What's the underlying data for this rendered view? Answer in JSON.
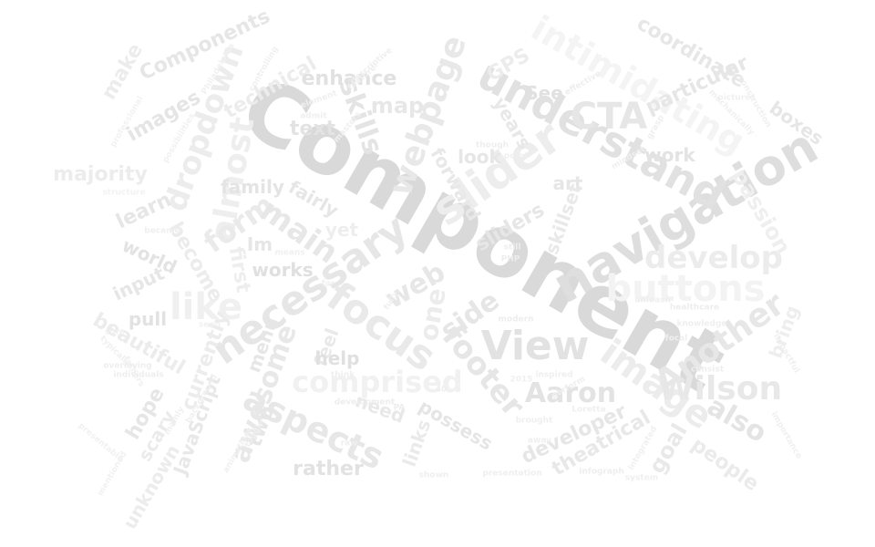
{
  "words": [
    {
      "text": "Component",
      "color": "#d9d9d9"
    },
    {
      "text": "navigation",
      "color": "#dedede"
    },
    {
      "text": "understand",
      "color": "#e1e1e1"
    },
    {
      "text": "necessary",
      "color": "#e6e6e6"
    },
    {
      "text": "slider",
      "color": "#ededed"
    },
    {
      "text": "buttons",
      "color": "#f3f3f3"
    },
    {
      "text": "View",
      "color": "#e2e2e2"
    },
    {
      "text": "image",
      "color": "#ececec"
    },
    {
      "text": "intimidating",
      "color": "#f4f4f4"
    },
    {
      "text": "focus",
      "color": "#e9e9e9"
    },
    {
      "text": "Wilson",
      "color": "#e8e8e8"
    },
    {
      "text": "Aaron",
      "color": "#e3e3e3"
    },
    {
      "text": "footer",
      "color": "#e6e6e6"
    },
    {
      "text": "webpage",
      "color": "#e8e8e8"
    },
    {
      "text": "comprised",
      "color": "#f1f1f1"
    },
    {
      "text": "aspects",
      "color": "#e7e7e7"
    },
    {
      "text": "almost",
      "color": "#eeeeee"
    },
    {
      "text": "dropdown",
      "color": "#ececec"
    },
    {
      "text": "Another",
      "color": "#e7e7e7"
    },
    {
      "text": "develop",
      "color": "#ececec"
    },
    {
      "text": "CTA",
      "color": "#e6e6e6"
    },
    {
      "text": "like",
      "color": "#f0f0f0"
    },
    {
      "text": "form",
      "color": "#eaeaea"
    },
    {
      "text": "main",
      "color": "#e7e7e7"
    },
    {
      "text": "awesome",
      "color": "#e8e8e8"
    },
    {
      "text": "skills",
      "color": "#e4e4e4"
    },
    {
      "text": "web",
      "color": "#e7e7e7"
    },
    {
      "text": "one",
      "color": "#ececec"
    },
    {
      "text": "side",
      "color": "#e6e6e6"
    },
    {
      "text": "also",
      "color": "#e4e4e4"
    },
    {
      "text": "people",
      "color": "#ebebeb"
    },
    {
      "text": "goal",
      "color": "#e9e9e9"
    },
    {
      "text": "developer",
      "color": "#e6e6e6"
    },
    {
      "text": "theatrical",
      "color": "#e8e8e8"
    },
    {
      "text": "coordinate",
      "color": "#e7e7e7"
    },
    {
      "text": "particular",
      "color": "#e6e6e6"
    },
    {
      "text": "boxes",
      "color": "#e6e6e6"
    },
    {
      "text": "passion",
      "color": "#efefef"
    },
    {
      "text": "Components",
      "color": "#e6e6e6"
    },
    {
      "text": "make",
      "color": "#ececec"
    },
    {
      "text": "images",
      "color": "#e5e5e5"
    },
    {
      "text": "technical",
      "color": "#ececec"
    },
    {
      "text": "enhance",
      "color": "#e1e1e1"
    },
    {
      "text": "text",
      "color": "#e3e3e3"
    },
    {
      "text": "map",
      "color": "#e7e7e7"
    },
    {
      "text": "GPS",
      "color": "#ececec"
    },
    {
      "text": "See",
      "color": "#e1e1e1"
    },
    {
      "text": "years",
      "color": "#e8e8e8"
    },
    {
      "text": "work",
      "color": "#e3e3e3"
    },
    {
      "text": "art",
      "color": "#e6e6e6"
    },
    {
      "text": "look",
      "color": "#e6e6e6"
    },
    {
      "text": "forward",
      "color": "#e8e8e8"
    },
    {
      "text": "majority",
      "color": "#ececec"
    },
    {
      "text": "learn",
      "color": "#e6e6e6"
    },
    {
      "text": "family",
      "color": "#e4e4e4"
    },
    {
      "text": "fairly",
      "color": "#e6e6e6"
    },
    {
      "text": "become",
      "color": "#ececec"
    },
    {
      "text": "first",
      "color": "#eeeeee"
    },
    {
      "text": "Im",
      "color": "#e6e6e6"
    },
    {
      "text": "yet",
      "color": "#eeeeee"
    },
    {
      "text": "sliders",
      "color": "#e6e6e6"
    },
    {
      "text": "skillset",
      "color": "#e9e9e9"
    },
    {
      "text": "world",
      "color": "#e3e3e3"
    },
    {
      "text": "input",
      "color": "#e6e6e6"
    },
    {
      "text": "pull",
      "color": "#e2e2e2"
    },
    {
      "text": "works",
      "color": "#e0e0e0"
    },
    {
      "text": "currently",
      "color": "#ececec"
    },
    {
      "text": "beautiful",
      "color": "#ececec"
    },
    {
      "text": "menu",
      "color": "#e6e6e6"
    },
    {
      "text": "feel",
      "color": "#e9e9e9"
    },
    {
      "text": "help",
      "color": "#e0e0e0"
    },
    {
      "text": "need",
      "color": "#e8e8e8"
    },
    {
      "text": "possess",
      "color": "#e5e5e5"
    },
    {
      "text": "links",
      "color": "#eaeaea"
    },
    {
      "text": "hope",
      "color": "#e6e6e6"
    },
    {
      "text": "scary",
      "color": "#ebebeb"
    },
    {
      "text": "unknown",
      "color": "#ececec"
    },
    {
      "text": "JavaScript",
      "color": "#e8e8e8"
    },
    {
      "text": "two",
      "color": "#e6e6e6"
    },
    {
      "text": "rather",
      "color": "#e2e2e2"
    },
    {
      "text": "bring",
      "color": "#eeeeee"
    },
    {
      "text": "descriptive",
      "color": "#efefef"
    },
    {
      "text": "feature",
      "color": "#efefef"
    },
    {
      "text": "element",
      "color": "#efefef"
    },
    {
      "text": "controlling",
      "color": "#f0f0f0"
    },
    {
      "text": "mindset",
      "color": "#efefef"
    },
    {
      "text": "grasp",
      "color": "#efefef"
    },
    {
      "text": "mechanically",
      "color": "#f0f0f0"
    },
    {
      "text": "pictures",
      "color": "#f0f0f0"
    },
    {
      "text": "construction",
      "color": "#f0f0f0"
    },
    {
      "text": "effective",
      "color": "#eeeeee"
    },
    {
      "text": "Philadelphia",
      "color": "#f1f1f1"
    },
    {
      "text": "possibilities",
      "color": "#f1f1f1"
    },
    {
      "text": "professional",
      "color": "#f2f2f2"
    },
    {
      "text": "structure",
      "color": "#f2f2f2"
    },
    {
      "text": "became",
      "color": "#efefef"
    },
    {
      "text": "though",
      "color": "#eeeeee"
    },
    {
      "text": "point",
      "color": "#efefef"
    },
    {
      "text": "still",
      "color": "#eeeeee"
    },
    {
      "text": "PHP",
      "color": "#eeeeee"
    },
    {
      "text": "modern",
      "color": "#ededed"
    },
    {
      "text": "unleash",
      "color": "#eeeeee"
    },
    {
      "text": "healthcare",
      "color": "#ededed"
    },
    {
      "text": "knowledge",
      "color": "#efefef"
    },
    {
      "text": "consist",
      "color": "#eeeeee"
    },
    {
      "text": "impactful",
      "color": "#efefef"
    },
    {
      "text": "importance",
      "color": "#f0f0f0"
    },
    {
      "text": "overlaying",
      "color": "#eeeeee"
    },
    {
      "text": "individuals",
      "color": "#eeeeee"
    },
    {
      "text": "typically",
      "color": "#f0f0f0"
    },
    {
      "text": "think",
      "color": "#efefef"
    },
    {
      "text": "development",
      "color": "#ededed"
    },
    {
      "text": "PA",
      "color": "#eeeeee"
    },
    {
      "text": "40",
      "color": "#eeeeee"
    },
    {
      "text": "brought",
      "color": "#efefef"
    },
    {
      "text": "away",
      "color": "#efefef"
    },
    {
      "text": "Loretta",
      "color": "#efefef"
    },
    {
      "text": "presentation",
      "color": "#efefef"
    },
    {
      "text": "Infograph",
      "color": "#eeeeee"
    },
    {
      "text": "system",
      "color": "#efefef"
    },
    {
      "text": "integrated",
      "color": "#f0f0f0"
    },
    {
      "text": "shown",
      "color": "#efefef"
    },
    {
      "text": "animations",
      "color": "#f0f0f0"
    },
    {
      "text": "toggle",
      "color": "#efefef"
    },
    {
      "text": "background",
      "color": "#f0f0f0"
    },
    {
      "text": "mentioned",
      "color": "#f1f1f1"
    },
    {
      "text": "presentable",
      "color": "#f1f1f1"
    },
    {
      "text": "fathers",
      "color": "#f0f0f0"
    },
    {
      "text": "inspired",
      "color": "#efefef"
    },
    {
      "text": "perform",
      "color": "#efefef"
    },
    {
      "text": "2015",
      "color": "#f0f0f0"
    },
    {
      "text": "admit",
      "color": "#efefef"
    },
    {
      "text": "masters",
      "color": "#f0f0f0"
    },
    {
      "text": "sure",
      "color": "#f0f0f0"
    },
    {
      "text": "seen",
      "color": "#f0f0f0"
    },
    {
      "text": "fully",
      "color": "#efefef"
    },
    {
      "text": "raw",
      "color": "#efefef"
    },
    {
      "text": "means",
      "color": "#f0f0f0"
    },
    {
      "text": "far",
      "color": "#f0f0f0"
    },
    {
      "text": "mainly",
      "color": "#f0f0f0"
    },
    {
      "text": "focal",
      "color": "#efefef"
    }
  ]
}
